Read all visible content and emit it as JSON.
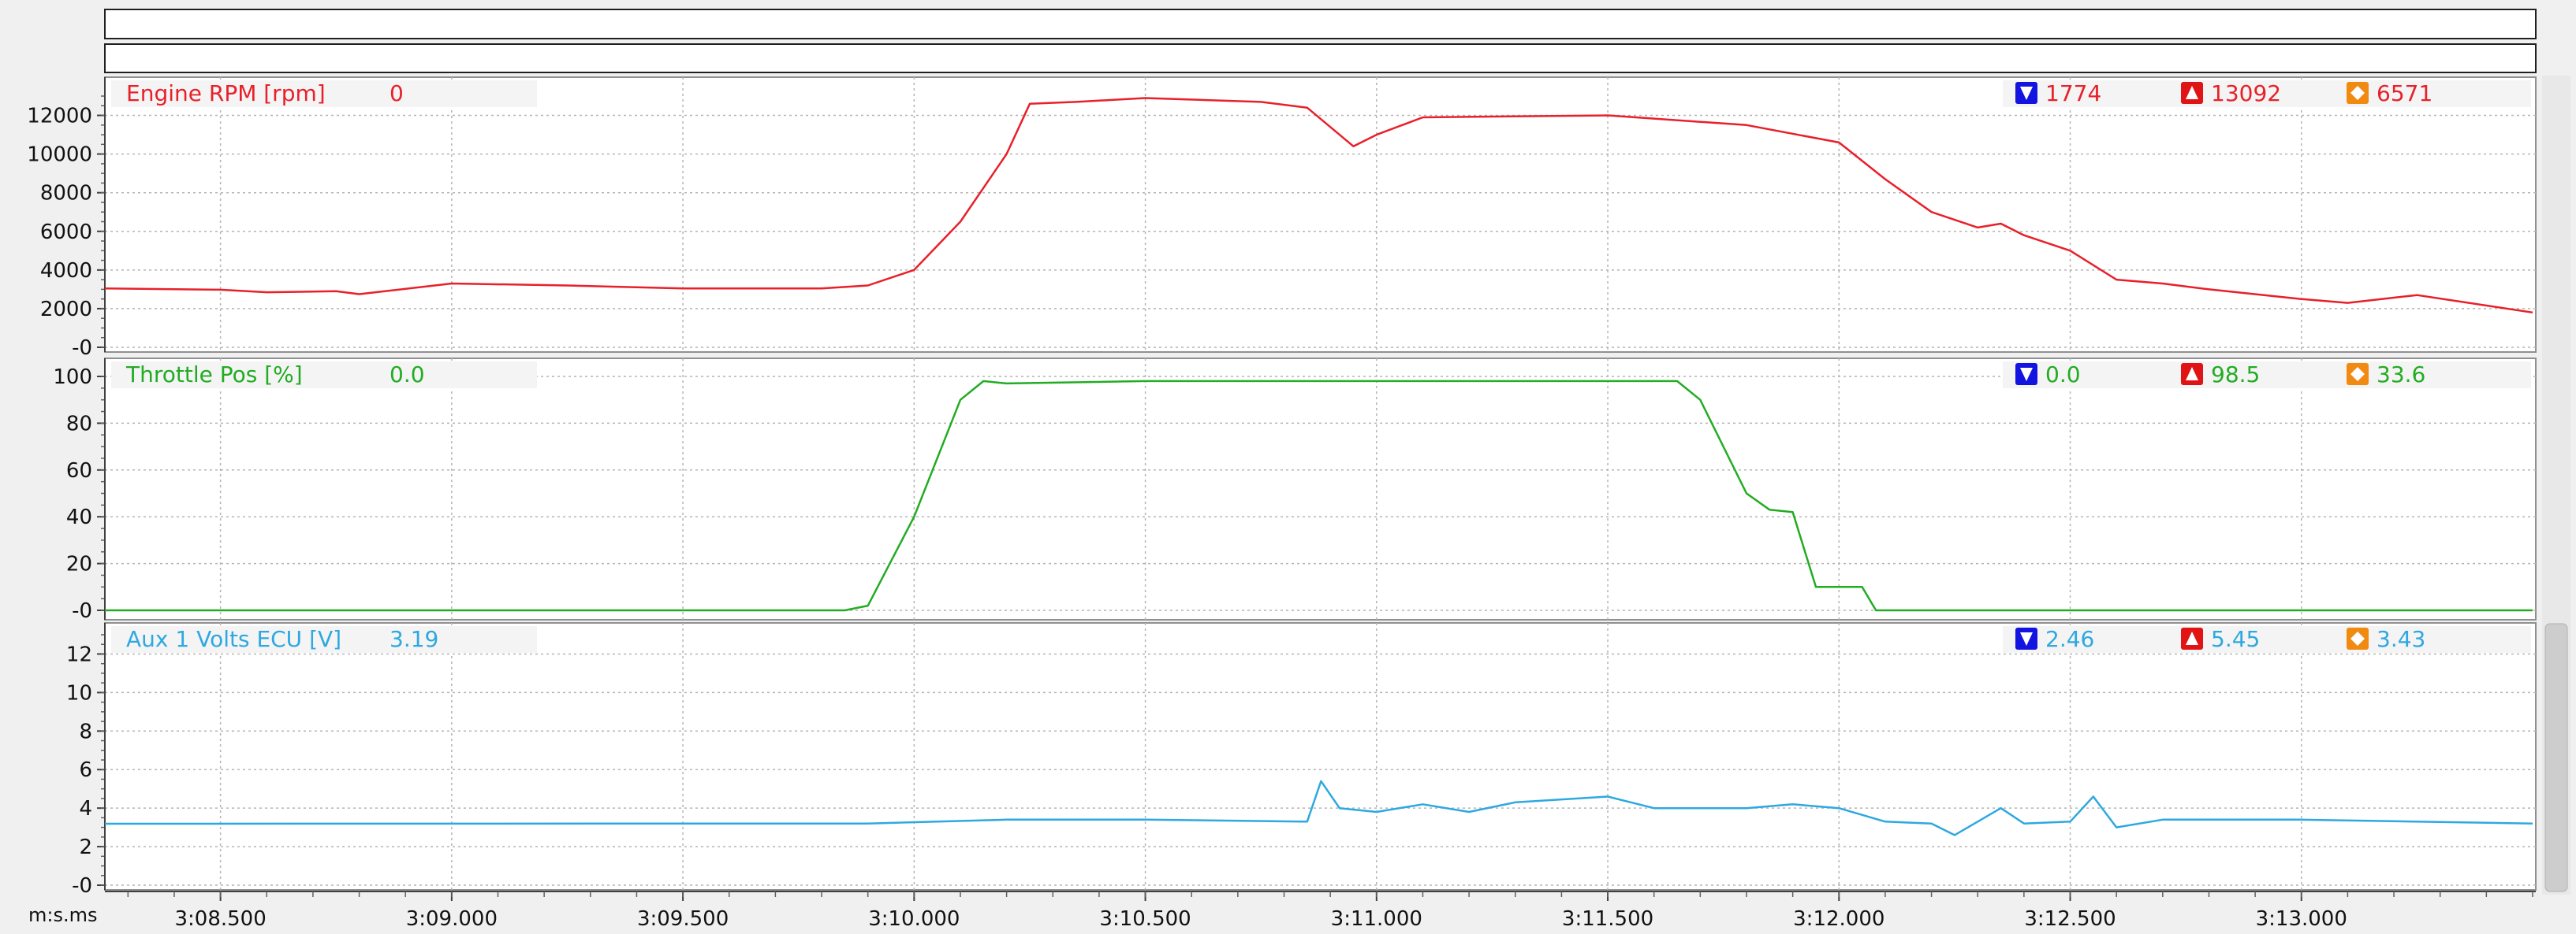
{
  "chart_data": {
    "type": "line",
    "x_axis": {
      "unit_label": "m:s.ms",
      "range_s": [
        188.25,
        193.5
      ],
      "ticks": [
        {
          "t": 188.5,
          "label": "3:08.500"
        },
        {
          "t": 189.0,
          "label": "3:09.000"
        },
        {
          "t": 189.5,
          "label": "3:09.500"
        },
        {
          "t": 190.0,
          "label": "3:10.000"
        },
        {
          "t": 190.5,
          "label": "3:10.500"
        },
        {
          "t": 191.0,
          "label": "3:11.000"
        },
        {
          "t": 191.5,
          "label": "3:11.500"
        },
        {
          "t": 192.0,
          "label": "3:12.000"
        },
        {
          "t": 192.5,
          "label": "3:12.500"
        },
        {
          "t": 193.0,
          "label": "3:13.000"
        }
      ]
    },
    "grid": true,
    "panels": [
      {
        "id": "rpm",
        "name": "Engine RPM [rpm]",
        "cursor_value": "0",
        "color": "#e8202a",
        "ylim": [
          0,
          13000
        ],
        "yticks": [
          {
            "v": 0,
            "label": "-0"
          },
          {
            "v": 2000,
            "label": "2000"
          },
          {
            "v": 4000,
            "label": "4000"
          },
          {
            "v": 6000,
            "label": "6000"
          },
          {
            "v": 8000,
            "label": "8000"
          },
          {
            "v": 10000,
            "label": "10000"
          },
          {
            "v": 12000,
            "label": "12000"
          }
        ],
        "stats": {
          "min": "1774",
          "max": "13092",
          "avg": "6571"
        },
        "points": [
          [
            188.25,
            3050
          ],
          [
            188.5,
            2980
          ],
          [
            188.6,
            2850
          ],
          [
            188.75,
            2900
          ],
          [
            188.8,
            2750
          ],
          [
            189.0,
            3300
          ],
          [
            189.25,
            3200
          ],
          [
            189.5,
            3050
          ],
          [
            189.8,
            3050
          ],
          [
            189.9,
            3200
          ],
          [
            190.0,
            4000
          ],
          [
            190.1,
            6500
          ],
          [
            190.2,
            10000
          ],
          [
            190.25,
            12600
          ],
          [
            190.35,
            12700
          ],
          [
            190.5,
            12900
          ],
          [
            190.75,
            12700
          ],
          [
            190.85,
            12400
          ],
          [
            190.95,
            10400
          ],
          [
            191.0,
            11000
          ],
          [
            191.1,
            11900
          ],
          [
            191.5,
            12000
          ],
          [
            191.8,
            11500
          ],
          [
            192.0,
            10600
          ],
          [
            192.1,
            8700
          ],
          [
            192.2,
            7000
          ],
          [
            192.3,
            6200
          ],
          [
            192.35,
            6400
          ],
          [
            192.4,
            5800
          ],
          [
            192.5,
            5000
          ],
          [
            192.6,
            3500
          ],
          [
            192.7,
            3300
          ],
          [
            192.8,
            3000
          ],
          [
            193.0,
            2500
          ],
          [
            193.1,
            2300
          ],
          [
            193.25,
            2700
          ],
          [
            193.5,
            1800
          ]
        ]
      },
      {
        "id": "throttle",
        "name": "Throttle Pos [%]",
        "cursor_value": "0.0",
        "color": "#22ac22",
        "ylim": [
          0,
          100
        ],
        "yticks": [
          {
            "v": 0,
            "label": "-0"
          },
          {
            "v": 20,
            "label": "20"
          },
          {
            "v": 40,
            "label": "40"
          },
          {
            "v": 60,
            "label": "60"
          },
          {
            "v": 80,
            "label": "80"
          },
          {
            "v": 100,
            "label": "100"
          }
        ],
        "stats": {
          "min": "0.0",
          "max": "98.5",
          "avg": "33.6"
        },
        "points": [
          [
            188.25,
            0
          ],
          [
            189.85,
            0
          ],
          [
            189.9,
            2
          ],
          [
            190.0,
            40
          ],
          [
            190.1,
            90
          ],
          [
            190.15,
            98
          ],
          [
            190.2,
            97
          ],
          [
            190.5,
            98
          ],
          [
            191.65,
            98
          ],
          [
            191.7,
            90
          ],
          [
            191.8,
            50
          ],
          [
            191.85,
            43
          ],
          [
            191.9,
            42
          ],
          [
            191.95,
            10
          ],
          [
            192.05,
            10
          ],
          [
            192.08,
            0
          ],
          [
            193.5,
            0
          ]
        ]
      },
      {
        "id": "aux",
        "name": "Aux 1 Volts ECU [V]",
        "cursor_value": "3.19",
        "color": "#2ea8e0",
        "ylim": [
          0,
          13
        ],
        "yticks": [
          {
            "v": 0,
            "label": "-0"
          },
          {
            "v": 2,
            "label": "2"
          },
          {
            "v": 4,
            "label": "4"
          },
          {
            "v": 6,
            "label": "6"
          },
          {
            "v": 8,
            "label": "8"
          },
          {
            "v": 10,
            "label": "10"
          },
          {
            "v": 12,
            "label": "12"
          }
        ],
        "stats": {
          "min": "2.46",
          "max": "5.45",
          "avg": "3.43"
        },
        "points": [
          [
            188.25,
            3.19
          ],
          [
            189.9,
            3.2
          ],
          [
            190.2,
            3.4
          ],
          [
            190.5,
            3.4
          ],
          [
            190.85,
            3.3
          ],
          [
            190.88,
            5.4
          ],
          [
            190.92,
            4.0
          ],
          [
            191.0,
            3.8
          ],
          [
            191.1,
            4.2
          ],
          [
            191.2,
            3.8
          ],
          [
            191.3,
            4.3
          ],
          [
            191.5,
            4.6
          ],
          [
            191.6,
            4.0
          ],
          [
            191.8,
            4.0
          ],
          [
            191.9,
            4.2
          ],
          [
            192.0,
            4.0
          ],
          [
            192.1,
            3.3
          ],
          [
            192.2,
            3.2
          ],
          [
            192.25,
            2.6
          ],
          [
            192.35,
            4.0
          ],
          [
            192.4,
            3.2
          ],
          [
            192.5,
            3.3
          ],
          [
            192.55,
            4.6
          ],
          [
            192.6,
            3.0
          ],
          [
            192.7,
            3.4
          ],
          [
            193.0,
            3.4
          ],
          [
            193.5,
            3.2
          ]
        ]
      }
    ]
  }
}
